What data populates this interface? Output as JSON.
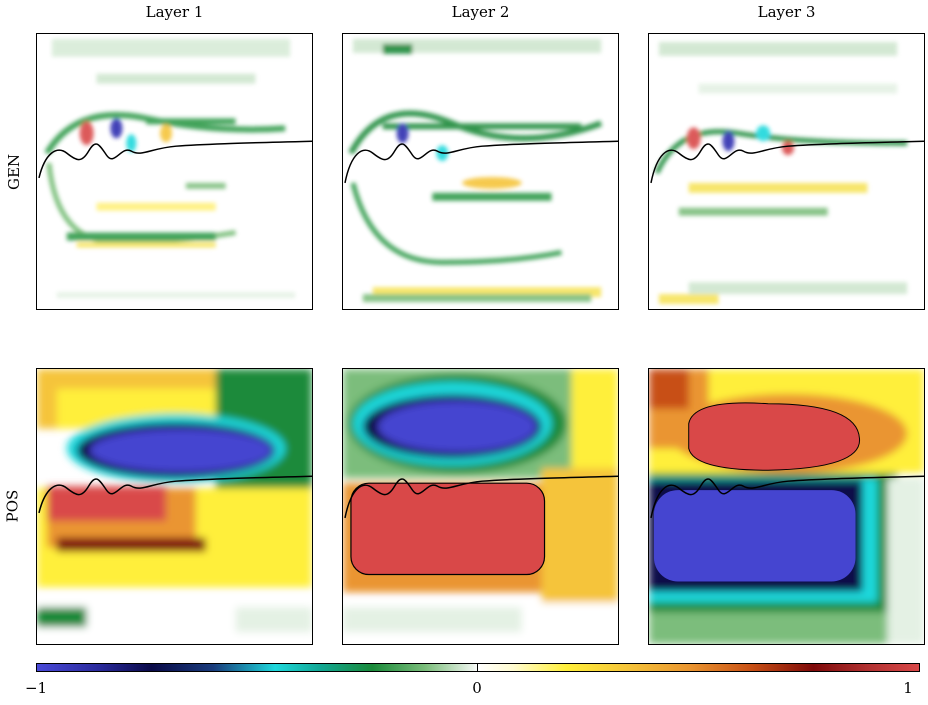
{
  "columns": [
    "Layer 1",
    "Layer 2",
    "Layer 3"
  ],
  "rows": [
    "GEN",
    "POS"
  ],
  "colorbar": {
    "min_label": "−1",
    "mid_label": "0",
    "max_label": "1",
    "colormap": "diverging blue-cyan-green-white-yellow-orange-red"
  },
  "colors": {
    "negative_strong": "#4545d0",
    "negative_dark": "#0a0a48",
    "cyan": "#1fd8dc",
    "green": "#1a8a3a",
    "neutral": "#ffffff",
    "yellow": "#ffef3a",
    "orange": "#ea9530",
    "positive_strong": "#d94848",
    "interface_line": "#000000"
  }
}
